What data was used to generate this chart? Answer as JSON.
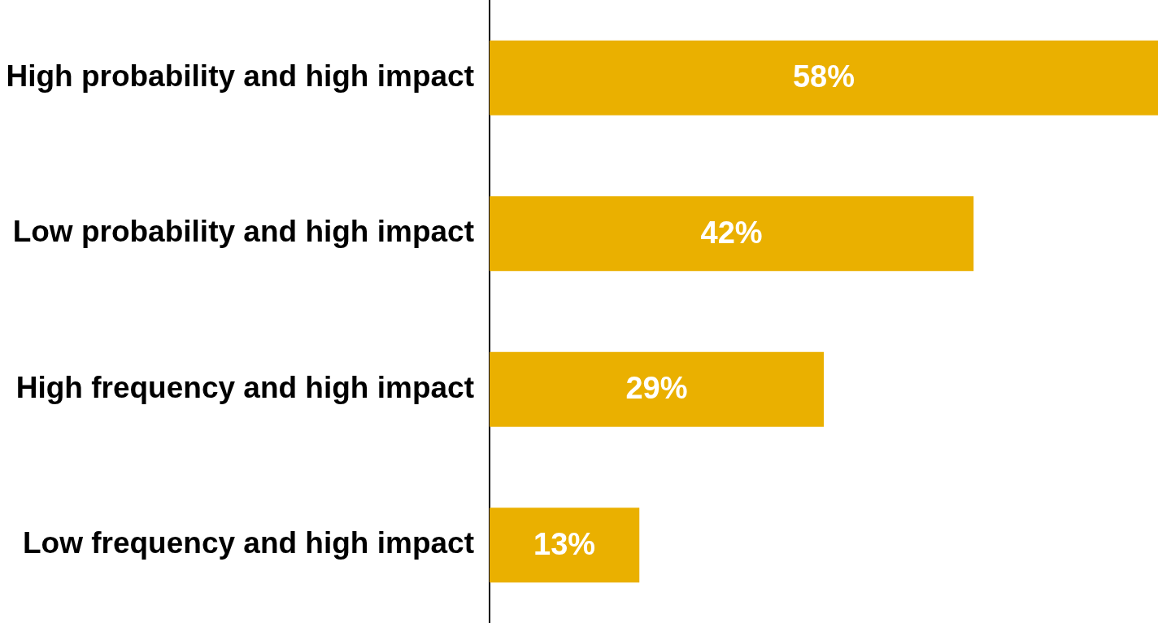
{
  "chart_data": {
    "type": "bar",
    "orientation": "horizontal",
    "categories": [
      "High probability and high impact",
      "Low probability and high impact",
      "High frequency and high impact",
      "Low frequency and high impact"
    ],
    "values": [
      58,
      42,
      29,
      13
    ],
    "value_labels": [
      "58%",
      "42%",
      "29%",
      "13%"
    ],
    "color": "#eab000",
    "xlim": [
      0,
      58
    ],
    "tick_labels": "y"
  }
}
